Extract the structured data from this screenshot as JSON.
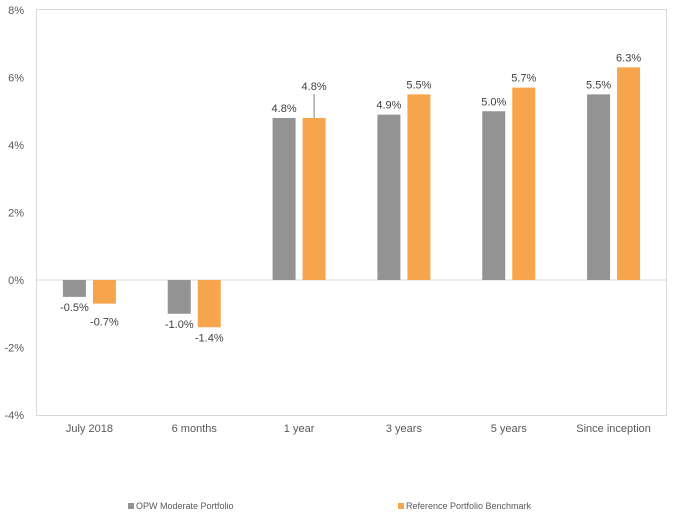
{
  "chart_data": {
    "type": "bar",
    "title": "",
    "xlabel": "",
    "ylabel": "",
    "categories": [
      "July 2018",
      "6 months",
      "1 year",
      "3 years",
      "5 years",
      "Since inception"
    ],
    "series": [
      {
        "name": "OPW Moderate Portfolio",
        "color": "#939393",
        "values": [
          -0.5,
          -1.0,
          4.8,
          4.9,
          5.0,
          5.5
        ],
        "labels": [
          "-0.5%",
          "-1.0%",
          "4.8%",
          "4.9%",
          "5.0%",
          "5.5%"
        ]
      },
      {
        "name": "Reference Portfolio Benchmark",
        "color": "#F7A54C",
        "values": [
          -0.7,
          -1.4,
          4.8,
          5.5,
          5.7,
          6.3
        ],
        "labels": [
          "-0.7%",
          "-1.4%",
          "4.8%",
          "5.5%",
          "5.7%",
          "6.3%"
        ]
      }
    ],
    "ylim": [
      -4,
      8
    ],
    "yticks": [
      -4,
      -2,
      0,
      2,
      4,
      6,
      8
    ],
    "ytick_labels": [
      "-4%",
      "-2%",
      "0%",
      "2%",
      "4%",
      "6%",
      "8%"
    ],
    "grid": false,
    "legend_position": "bottom"
  }
}
